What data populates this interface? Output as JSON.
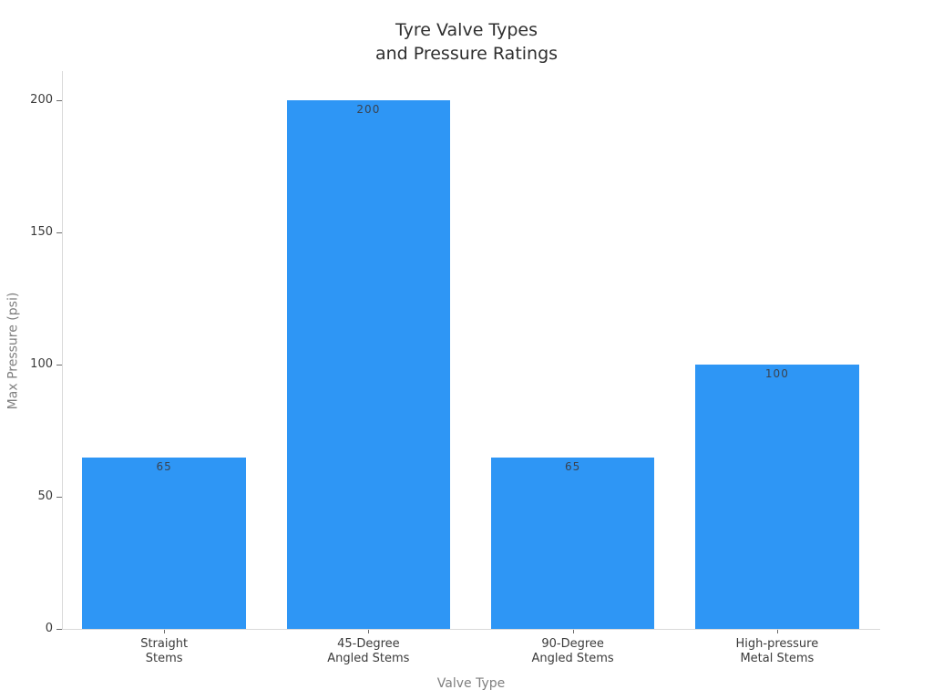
{
  "title": {
    "line1": "Tyre Valve Types",
    "line2": "and Pressure Ratings"
  },
  "chart_data": {
    "type": "bar",
    "title": "Tyre Valve Types\nand Pressure Ratings",
    "categories": [
      "Straight\nStems",
      "45-Degree\nAngled Stems",
      "90-Degree\nAngled Stems",
      "High-pressure\nMetal Stems"
    ],
    "values": [
      65,
      200,
      65,
      100
    ],
    "value_labels": [
      "65",
      "200",
      "65",
      "100"
    ],
    "xlabel": "Valve Type",
    "ylabel": "Max Pressure (psi)",
    "ylim": [
      0,
      200
    ],
    "yticks": [
      0,
      50,
      100,
      150,
      200
    ],
    "grid": false,
    "legend": "none",
    "colors": {
      "bar": "#2e96f5",
      "bar_value_label": "#3a4350",
      "tick_label": "#3b3b3b",
      "axis_title": "#7f7f7f",
      "chart_title": "#2f2f2f",
      "spine": "#d9d9d9"
    }
  }
}
